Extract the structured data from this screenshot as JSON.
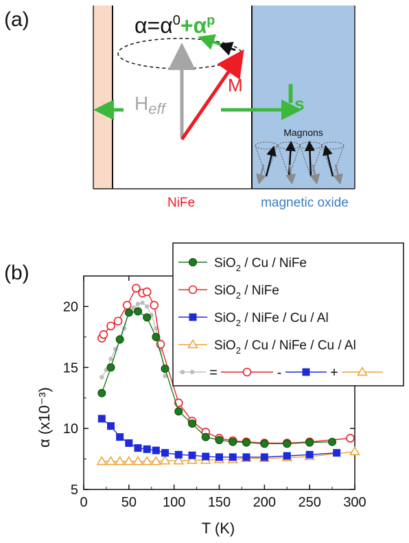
{
  "panel_a": {
    "label": "(a)",
    "equation": {
      "lhs": "α=α",
      "sup0": "0",
      "plus": "+α",
      "supp": "p"
    },
    "heff": {
      "main": "H",
      "sub": "eff"
    },
    "m_label": "M",
    "is": {
      "main": "I",
      "sub": "s"
    },
    "magnons": "Magnons",
    "nife": "NiFe",
    "oxide": "magnetic oxide",
    "colors": {
      "left_layer": "#fad9c6",
      "oxide": "#a7c5e4",
      "red": "#ee1c24",
      "green": "#3cb93c",
      "grey": "#a6a6a6",
      "oxide_label": "#3b7dc4"
    }
  },
  "panel_b": {
    "label": "(b)",
    "chart_data": {
      "type": "line",
      "xlabel": "T (K)",
      "ylabel": "α (x10⁻³)",
      "xlim": [
        0,
        300
      ],
      "ylim": [
        5,
        22.5
      ],
      "xticks": [
        0,
        50,
        100,
        150,
        200,
        250,
        300
      ],
      "yticks": [
        5,
        10,
        15,
        20
      ],
      "grid": false,
      "legend_position": "top-right",
      "legend": {
        "entries": [
          {
            "prefix": "SiO",
            "sub": "2",
            "suffix": " / Cu / NiFe"
          },
          {
            "prefix": "SiO",
            "sub": "2",
            "suffix": " / NiFe"
          },
          {
            "prefix": "SiO",
            "sub": "2",
            "suffix": " / NiFe / Cu / Al"
          },
          {
            "prefix": "SiO",
            "sub": "2",
            "suffix": " / Cu / NiFe / Cu / Al"
          }
        ],
        "equation": [
          "=",
          "-",
          "+"
        ]
      },
      "series": [
        {
          "color": "#1e7a1e",
          "marker": "filled-circle",
          "x": [
            20,
            30,
            40,
            50,
            60,
            70,
            80,
            90,
            105,
            120,
            135,
            150,
            165,
            180,
            200,
            225,
            250,
            275
          ],
          "y": [
            12.9,
            15.0,
            17.3,
            19.5,
            19.6,
            19.1,
            17.5,
            14.9,
            11.4,
            10.4,
            9.3,
            9.05,
            8.9,
            8.85,
            8.75,
            8.75,
            8.85,
            8.9
          ]
        },
        {
          "color": "#e8222a",
          "marker": "open-circle",
          "x": [
            20,
            22,
            30,
            38,
            48,
            58,
            65,
            70,
            78,
            85,
            105,
            120,
            135,
            150,
            165,
            180,
            200,
            225,
            250,
            295
          ],
          "y": [
            17.4,
            17.7,
            18.4,
            18.8,
            20.1,
            21.5,
            21.1,
            21.2,
            20.1,
            16.9,
            12.1,
            10.6,
            9.7,
            9.2,
            9.0,
            8.9,
            8.8,
            8.8,
            8.9,
            9.2
          ]
        },
        {
          "color": "#1f2ad8",
          "marker": "filled-square",
          "x": [
            20,
            30,
            40,
            50,
            60,
            70,
            80,
            90,
            105,
            120,
            135,
            150,
            165,
            180,
            200,
            225,
            250,
            280
          ],
          "y": [
            10.8,
            10.2,
            9.3,
            8.8,
            8.4,
            8.3,
            8.2,
            8.0,
            7.85,
            7.8,
            7.7,
            7.65,
            7.65,
            7.65,
            7.65,
            7.75,
            7.85,
            8.0
          ]
        },
        {
          "color": "#f0a030",
          "marker": "open-triangle",
          "x": [
            20,
            30,
            40,
            50,
            60,
            70,
            80,
            90,
            105,
            120,
            135,
            150,
            165,
            180,
            200,
            225,
            250,
            300
          ],
          "y": [
            7.3,
            7.3,
            7.3,
            7.3,
            7.3,
            7.3,
            7.3,
            7.35,
            7.35,
            7.4,
            7.4,
            7.45,
            7.45,
            7.55,
            7.55,
            7.6,
            7.7,
            8.1
          ]
        },
        {
          "color": "#bdbdbd",
          "marker": "small-dot",
          "x": [
            20,
            25,
            30,
            35,
            40,
            45,
            50,
            55,
            60,
            65,
            70,
            75,
            80,
            85,
            90
          ],
          "y": [
            14.2,
            14.8,
            15.7,
            16.5,
            17.1,
            18.2,
            19.6,
            19.9,
            20.2,
            20.3,
            20.0,
            19.3,
            18.2,
            16.5,
            14.3
          ]
        }
      ]
    }
  }
}
